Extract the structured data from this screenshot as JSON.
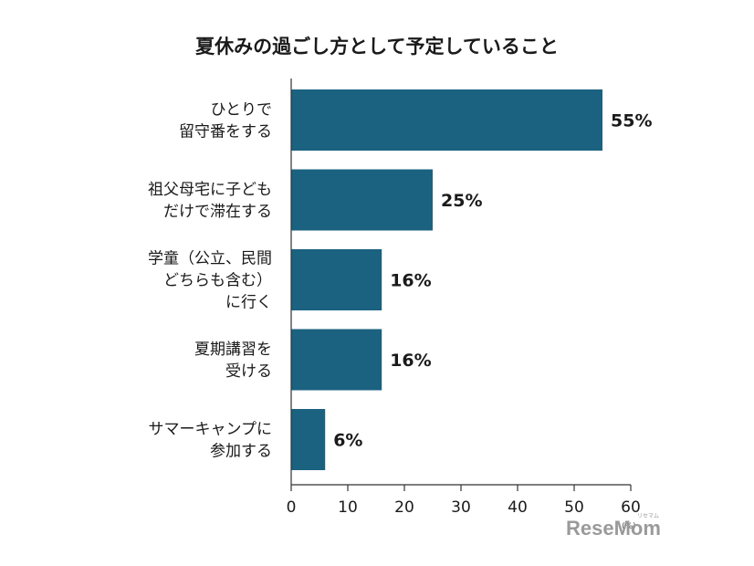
{
  "chart_data": {
    "type": "bar",
    "orientation": "horizontal",
    "title": "夏休みの過ごし方として予定していること",
    "categories": [
      [
        "ひとりで",
        "留守番をする"
      ],
      [
        "祖父母宅に子ども",
        "だけで滞在する"
      ],
      [
        "学童（公立、民間",
        "どちらも含む）",
        "に行く"
      ],
      [
        "夏期講習を",
        "受ける"
      ],
      [
        "サマーキャンプに",
        "参加する"
      ]
    ],
    "values": [
      55,
      25,
      16,
      16,
      6
    ],
    "value_labels": [
      "55%",
      "25%",
      "16%",
      "16%",
      "6%"
    ],
    "xlim": [
      0,
      60
    ],
    "xticks": [
      0,
      10,
      20,
      30,
      40,
      50,
      60
    ],
    "xunit": "(%)",
    "bar_color": "#1b6180",
    "grid": false
  },
  "watermark": {
    "text": "ReseMom",
    "small": "リセマム"
  }
}
